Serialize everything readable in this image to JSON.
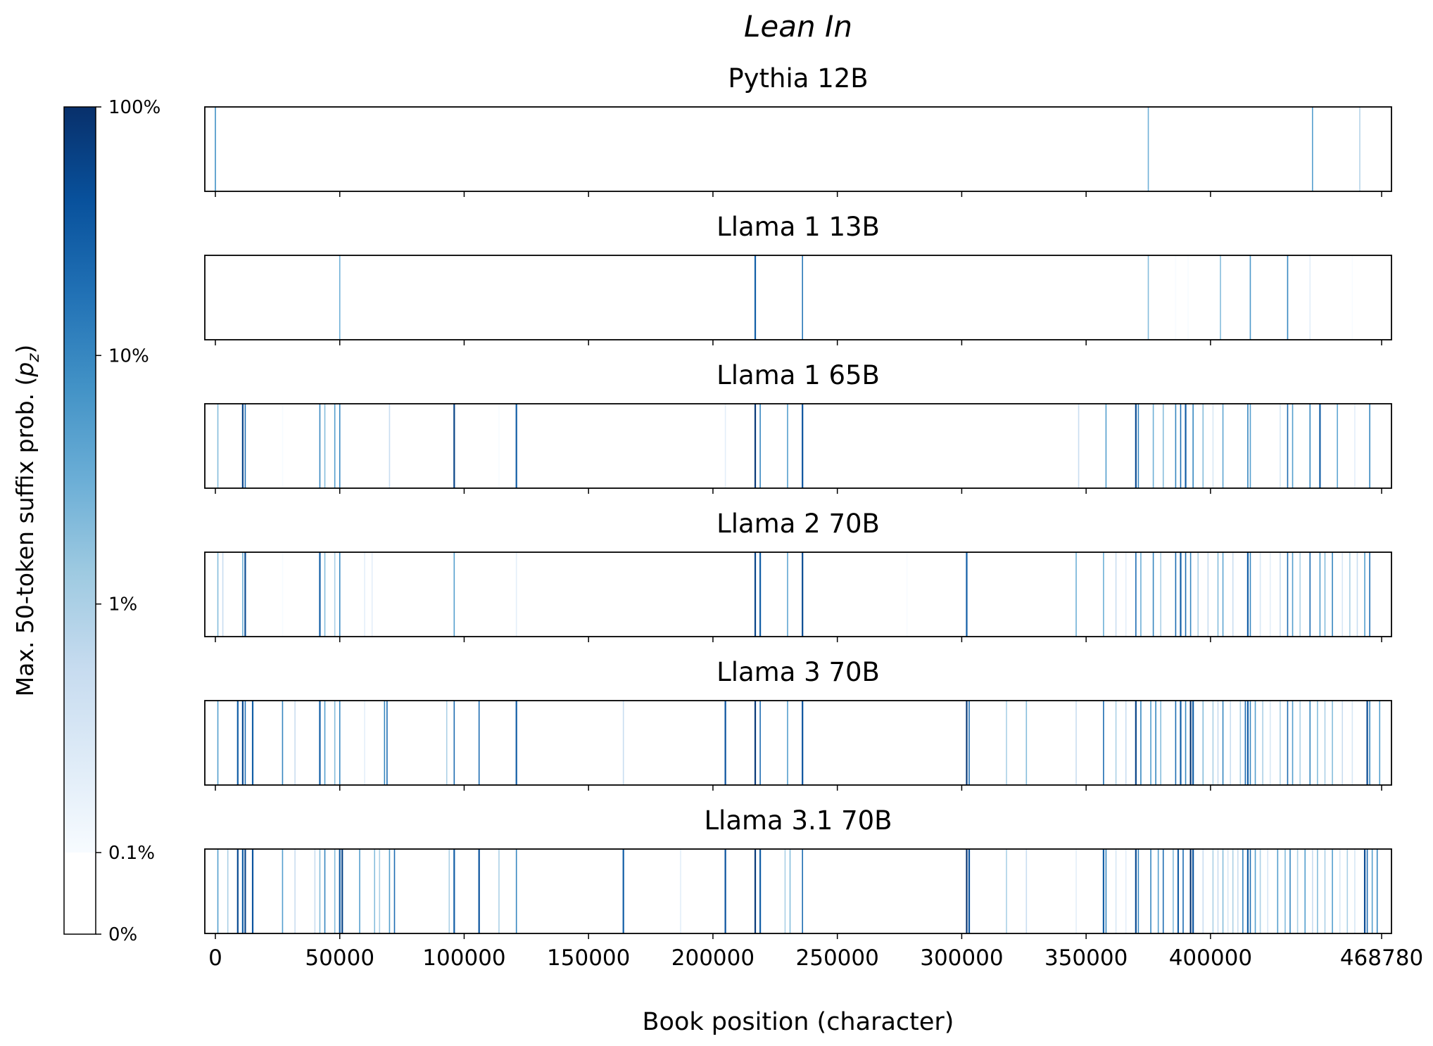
{
  "figure": {
    "title": "Lean In",
    "xlabel": "Book position (character)"
  },
  "colorbar": {
    "label_prefix": "Max. 50-token suffix prob. (",
    "label_symbol": "p",
    "label_subscript": "z",
    "label_suffix": ")",
    "scale": "log",
    "tick_labels": [
      "100%",
      "10%",
      "1%",
      "0.1%",
      "0%"
    ],
    "tick_values": [
      1.0,
      0.1,
      0.01,
      0.001,
      0
    ],
    "colormap_colors": [
      "#f7fbff",
      "#deebf7",
      "#c6dbef",
      "#9ecae1",
      "#6baed6",
      "#4292c6",
      "#2171b5",
      "#08519c",
      "#08306b"
    ]
  },
  "chart_data": {
    "type": "heatmap",
    "x_range": [
      0,
      468780
    ],
    "x_ticks": [
      0,
      50000,
      100000,
      150000,
      200000,
      250000,
      300000,
      350000,
      400000,
      468780
    ],
    "x_tick_labels": [
      "0",
      "50000",
      "100000",
      "150000",
      "200000",
      "250000",
      "300000",
      "350000",
      "400000",
      "468780"
    ],
    "grid": false,
    "panels": [
      {
        "name": "Pythia 12B",
        "events": [
          [
            0,
            0.08
          ],
          [
            375000,
            0.03
          ],
          [
            441000,
            0.05
          ],
          [
            460000,
            0.008
          ]
        ]
      },
      {
        "name": "Llama 1 13B",
        "events": [
          [
            50000,
            0.03
          ],
          [
            217000,
            0.3
          ],
          [
            236000,
            0.15
          ],
          [
            375000,
            0.02
          ],
          [
            386000,
            0.001
          ],
          [
            391000,
            0.001
          ],
          [
            404000,
            0.02
          ],
          [
            416000,
            0.06
          ],
          [
            431000,
            0.1
          ],
          [
            440000,
            0.002
          ],
          [
            457000,
            0.001
          ]
        ]
      },
      {
        "name": "Llama 1 65B",
        "events": [
          [
            1000,
            0.02
          ],
          [
            11000,
            0.6
          ],
          [
            12000,
            0.2
          ],
          [
            27000,
            0.001
          ],
          [
            42000,
            0.1
          ],
          [
            44000,
            0.02
          ],
          [
            48000,
            0.05
          ],
          [
            50000,
            0.1
          ],
          [
            70000,
            0.005
          ],
          [
            96000,
            0.6
          ],
          [
            114000,
            0.001
          ],
          [
            121000,
            0.3
          ],
          [
            205000,
            0.002
          ],
          [
            217000,
            0.8
          ],
          [
            219000,
            0.1
          ],
          [
            230000,
            0.05
          ],
          [
            236000,
            0.4
          ],
          [
            347000,
            0.005
          ],
          [
            358000,
            0.05
          ],
          [
            370000,
            0.5
          ],
          [
            371000,
            0.1
          ],
          [
            377000,
            0.03
          ],
          [
            381000,
            0.02
          ],
          [
            386000,
            0.1
          ],
          [
            388000,
            0.2
          ],
          [
            390000,
            0.3
          ],
          [
            393000,
            0.1
          ],
          [
            397000,
            0.02
          ],
          [
            401000,
            0.003
          ],
          [
            405000,
            0.04
          ],
          [
            415000,
            0.1
          ],
          [
            416000,
            0.05
          ],
          [
            428000,
            0.003
          ],
          [
            431000,
            0.2
          ],
          [
            433000,
            0.05
          ],
          [
            440000,
            0.1
          ],
          [
            444000,
            0.3
          ],
          [
            451000,
            0.04
          ],
          [
            458000,
            0.002
          ],
          [
            464000,
            0.1
          ]
        ]
      },
      {
        "name": "Llama 2 70B",
        "events": [
          [
            1000,
            0.02
          ],
          [
            3000,
            0.005
          ],
          [
            11000,
            0.03
          ],
          [
            12000,
            0.5
          ],
          [
            27000,
            0.001
          ],
          [
            42000,
            0.3
          ],
          [
            44000,
            0.02
          ],
          [
            48000,
            0.01
          ],
          [
            50000,
            0.1
          ],
          [
            60000,
            0.002
          ],
          [
            63000,
            0.002
          ],
          [
            96000,
            0.05
          ],
          [
            121000,
            0.002
          ],
          [
            217000,
            0.6
          ],
          [
            219000,
            0.3
          ],
          [
            230000,
            0.04
          ],
          [
            236000,
            0.5
          ],
          [
            278000,
            0.001
          ],
          [
            302000,
            0.3
          ],
          [
            346000,
            0.03
          ],
          [
            357000,
            0.03
          ],
          [
            362000,
            0.005
          ],
          [
            366000,
            0.002
          ],
          [
            370000,
            0.2
          ],
          [
            372000,
            0.03
          ],
          [
            377000,
            0.1
          ],
          [
            380000,
            0.01
          ],
          [
            386000,
            0.2
          ],
          [
            388000,
            0.3
          ],
          [
            390000,
            0.2
          ],
          [
            392000,
            0.1
          ],
          [
            395000,
            0.01
          ],
          [
            399000,
            0.005
          ],
          [
            403000,
            0.02
          ],
          [
            405000,
            0.04
          ],
          [
            409000,
            0.005
          ],
          [
            415000,
            0.3
          ],
          [
            416000,
            0.1
          ],
          [
            420000,
            0.003
          ],
          [
            424000,
            0.002
          ],
          [
            428000,
            0.005
          ],
          [
            431000,
            0.2
          ],
          [
            433000,
            0.05
          ],
          [
            436000,
            0.01
          ],
          [
            440000,
            0.2
          ],
          [
            444000,
            0.05
          ],
          [
            446000,
            0.02
          ],
          [
            449000,
            0.1
          ],
          [
            453000,
            0.003
          ],
          [
            456000,
            0.01
          ],
          [
            459000,
            0.005
          ],
          [
            462000,
            0.05
          ],
          [
            464000,
            0.2
          ]
        ]
      },
      {
        "name": "Llama 3 70B",
        "events": [
          [
            1000,
            0.05
          ],
          [
            9000,
            0.3
          ],
          [
            11000,
            0.5
          ],
          [
            12000,
            0.2
          ],
          [
            15000,
            0.3
          ],
          [
            27000,
            0.1
          ],
          [
            32000,
            0.005
          ],
          [
            42000,
            0.3
          ],
          [
            44000,
            0.05
          ],
          [
            48000,
            0.02
          ],
          [
            50000,
            0.1
          ],
          [
            60000,
            0.002
          ],
          [
            68000,
            0.1
          ],
          [
            69000,
            0.2
          ],
          [
            93000,
            0.01
          ],
          [
            96000,
            0.2
          ],
          [
            106000,
            0.2
          ],
          [
            121000,
            0.3
          ],
          [
            164000,
            0.005
          ],
          [
            205000,
            0.4
          ],
          [
            217000,
            0.8
          ],
          [
            219000,
            0.2
          ],
          [
            230000,
            0.05
          ],
          [
            236000,
            0.4
          ],
          [
            302000,
            0.8
          ],
          [
            303000,
            0.2
          ],
          [
            318000,
            0.01
          ],
          [
            326000,
            0.02
          ],
          [
            346000,
            0.005
          ],
          [
            357000,
            0.2
          ],
          [
            362000,
            0.01
          ],
          [
            366000,
            0.005
          ],
          [
            370000,
            0.6
          ],
          [
            372000,
            0.1
          ],
          [
            376000,
            0.05
          ],
          [
            378000,
            0.1
          ],
          [
            380000,
            0.02
          ],
          [
            386000,
            0.2
          ],
          [
            388000,
            0.3
          ],
          [
            390000,
            0.1
          ],
          [
            392000,
            0.9
          ],
          [
            393000,
            0.3
          ],
          [
            397000,
            0.02
          ],
          [
            401000,
            0.01
          ],
          [
            403000,
            0.005
          ],
          [
            405000,
            0.1
          ],
          [
            408000,
            0.005
          ],
          [
            412000,
            0.01
          ],
          [
            414000,
            0.2
          ],
          [
            415000,
            0.3
          ],
          [
            416000,
            0.1
          ],
          [
            418000,
            0.05
          ],
          [
            421000,
            0.01
          ],
          [
            424000,
            0.003
          ],
          [
            428000,
            0.01
          ],
          [
            431000,
            0.2
          ],
          [
            433000,
            0.05
          ],
          [
            436000,
            0.01
          ],
          [
            440000,
            0.1
          ],
          [
            443000,
            0.02
          ],
          [
            446000,
            0.01
          ],
          [
            449000,
            0.02
          ],
          [
            453000,
            0.005
          ],
          [
            457000,
            0.003
          ],
          [
            463000,
            0.5
          ],
          [
            464000,
            0.1
          ],
          [
            468000,
            0.05
          ]
        ]
      },
      {
        "name": "Llama 3.1 70B",
        "events": [
          [
            1000,
            0.05
          ],
          [
            5000,
            0.01
          ],
          [
            9000,
            0.5
          ],
          [
            11000,
            0.3
          ],
          [
            12000,
            0.6
          ],
          [
            15000,
            0.4
          ],
          [
            27000,
            0.05
          ],
          [
            32000,
            0.005
          ],
          [
            40000,
            0.005
          ],
          [
            42000,
            0.02
          ],
          [
            44000,
            0.1
          ],
          [
            48000,
            0.02
          ],
          [
            50000,
            0.3
          ],
          [
            51000,
            0.6
          ],
          [
            58000,
            0.05
          ],
          [
            64000,
            0.02
          ],
          [
            66000,
            0.01
          ],
          [
            70000,
            0.05
          ],
          [
            72000,
            0.2
          ],
          [
            94000,
            0.01
          ],
          [
            96000,
            0.3
          ],
          [
            106000,
            0.4
          ],
          [
            114000,
            0.01
          ],
          [
            121000,
            0.1
          ],
          [
            164000,
            0.3
          ],
          [
            187000,
            0.002
          ],
          [
            205000,
            0.4
          ],
          [
            217000,
            0.8
          ],
          [
            219000,
            0.3
          ],
          [
            229000,
            0.01
          ],
          [
            231000,
            0.02
          ],
          [
            236000,
            0.2
          ],
          [
            302000,
            0.9
          ],
          [
            303000,
            0.4
          ],
          [
            318000,
            0.01
          ],
          [
            326000,
            0.005
          ],
          [
            346000,
            0.002
          ],
          [
            357000,
            0.3
          ],
          [
            358000,
            0.1
          ],
          [
            362000,
            0.003
          ],
          [
            366000,
            0.002
          ],
          [
            370000,
            0.5
          ],
          [
            371000,
            0.1
          ],
          [
            376000,
            0.1
          ],
          [
            379000,
            0.05
          ],
          [
            381000,
            0.2
          ],
          [
            385000,
            0.02
          ],
          [
            387000,
            0.3
          ],
          [
            389000,
            0.2
          ],
          [
            392000,
            0.9
          ],
          [
            393000,
            0.4
          ],
          [
            397000,
            0.005
          ],
          [
            401000,
            0.01
          ],
          [
            403000,
            0.005
          ],
          [
            405000,
            0.02
          ],
          [
            407000,
            0.003
          ],
          [
            409000,
            0.01
          ],
          [
            411000,
            0.005
          ],
          [
            413000,
            0.1
          ],
          [
            415000,
            0.3
          ],
          [
            416000,
            0.2
          ],
          [
            418000,
            0.05
          ],
          [
            420000,
            0.01
          ],
          [
            423000,
            0.003
          ],
          [
            427000,
            0.05
          ],
          [
            430000,
            0.02
          ],
          [
            432000,
            0.1
          ],
          [
            435000,
            0.01
          ],
          [
            438000,
            0.05
          ],
          [
            441000,
            0.005
          ],
          [
            443000,
            0.02
          ],
          [
            446000,
            0.01
          ],
          [
            449000,
            0.05
          ],
          [
            452000,
            0.003
          ],
          [
            455000,
            0.01
          ],
          [
            458000,
            0.003
          ],
          [
            462000,
            0.5
          ],
          [
            463000,
            0.2
          ],
          [
            465000,
            0.05
          ],
          [
            467000,
            0.1
          ]
        ]
      }
    ]
  }
}
